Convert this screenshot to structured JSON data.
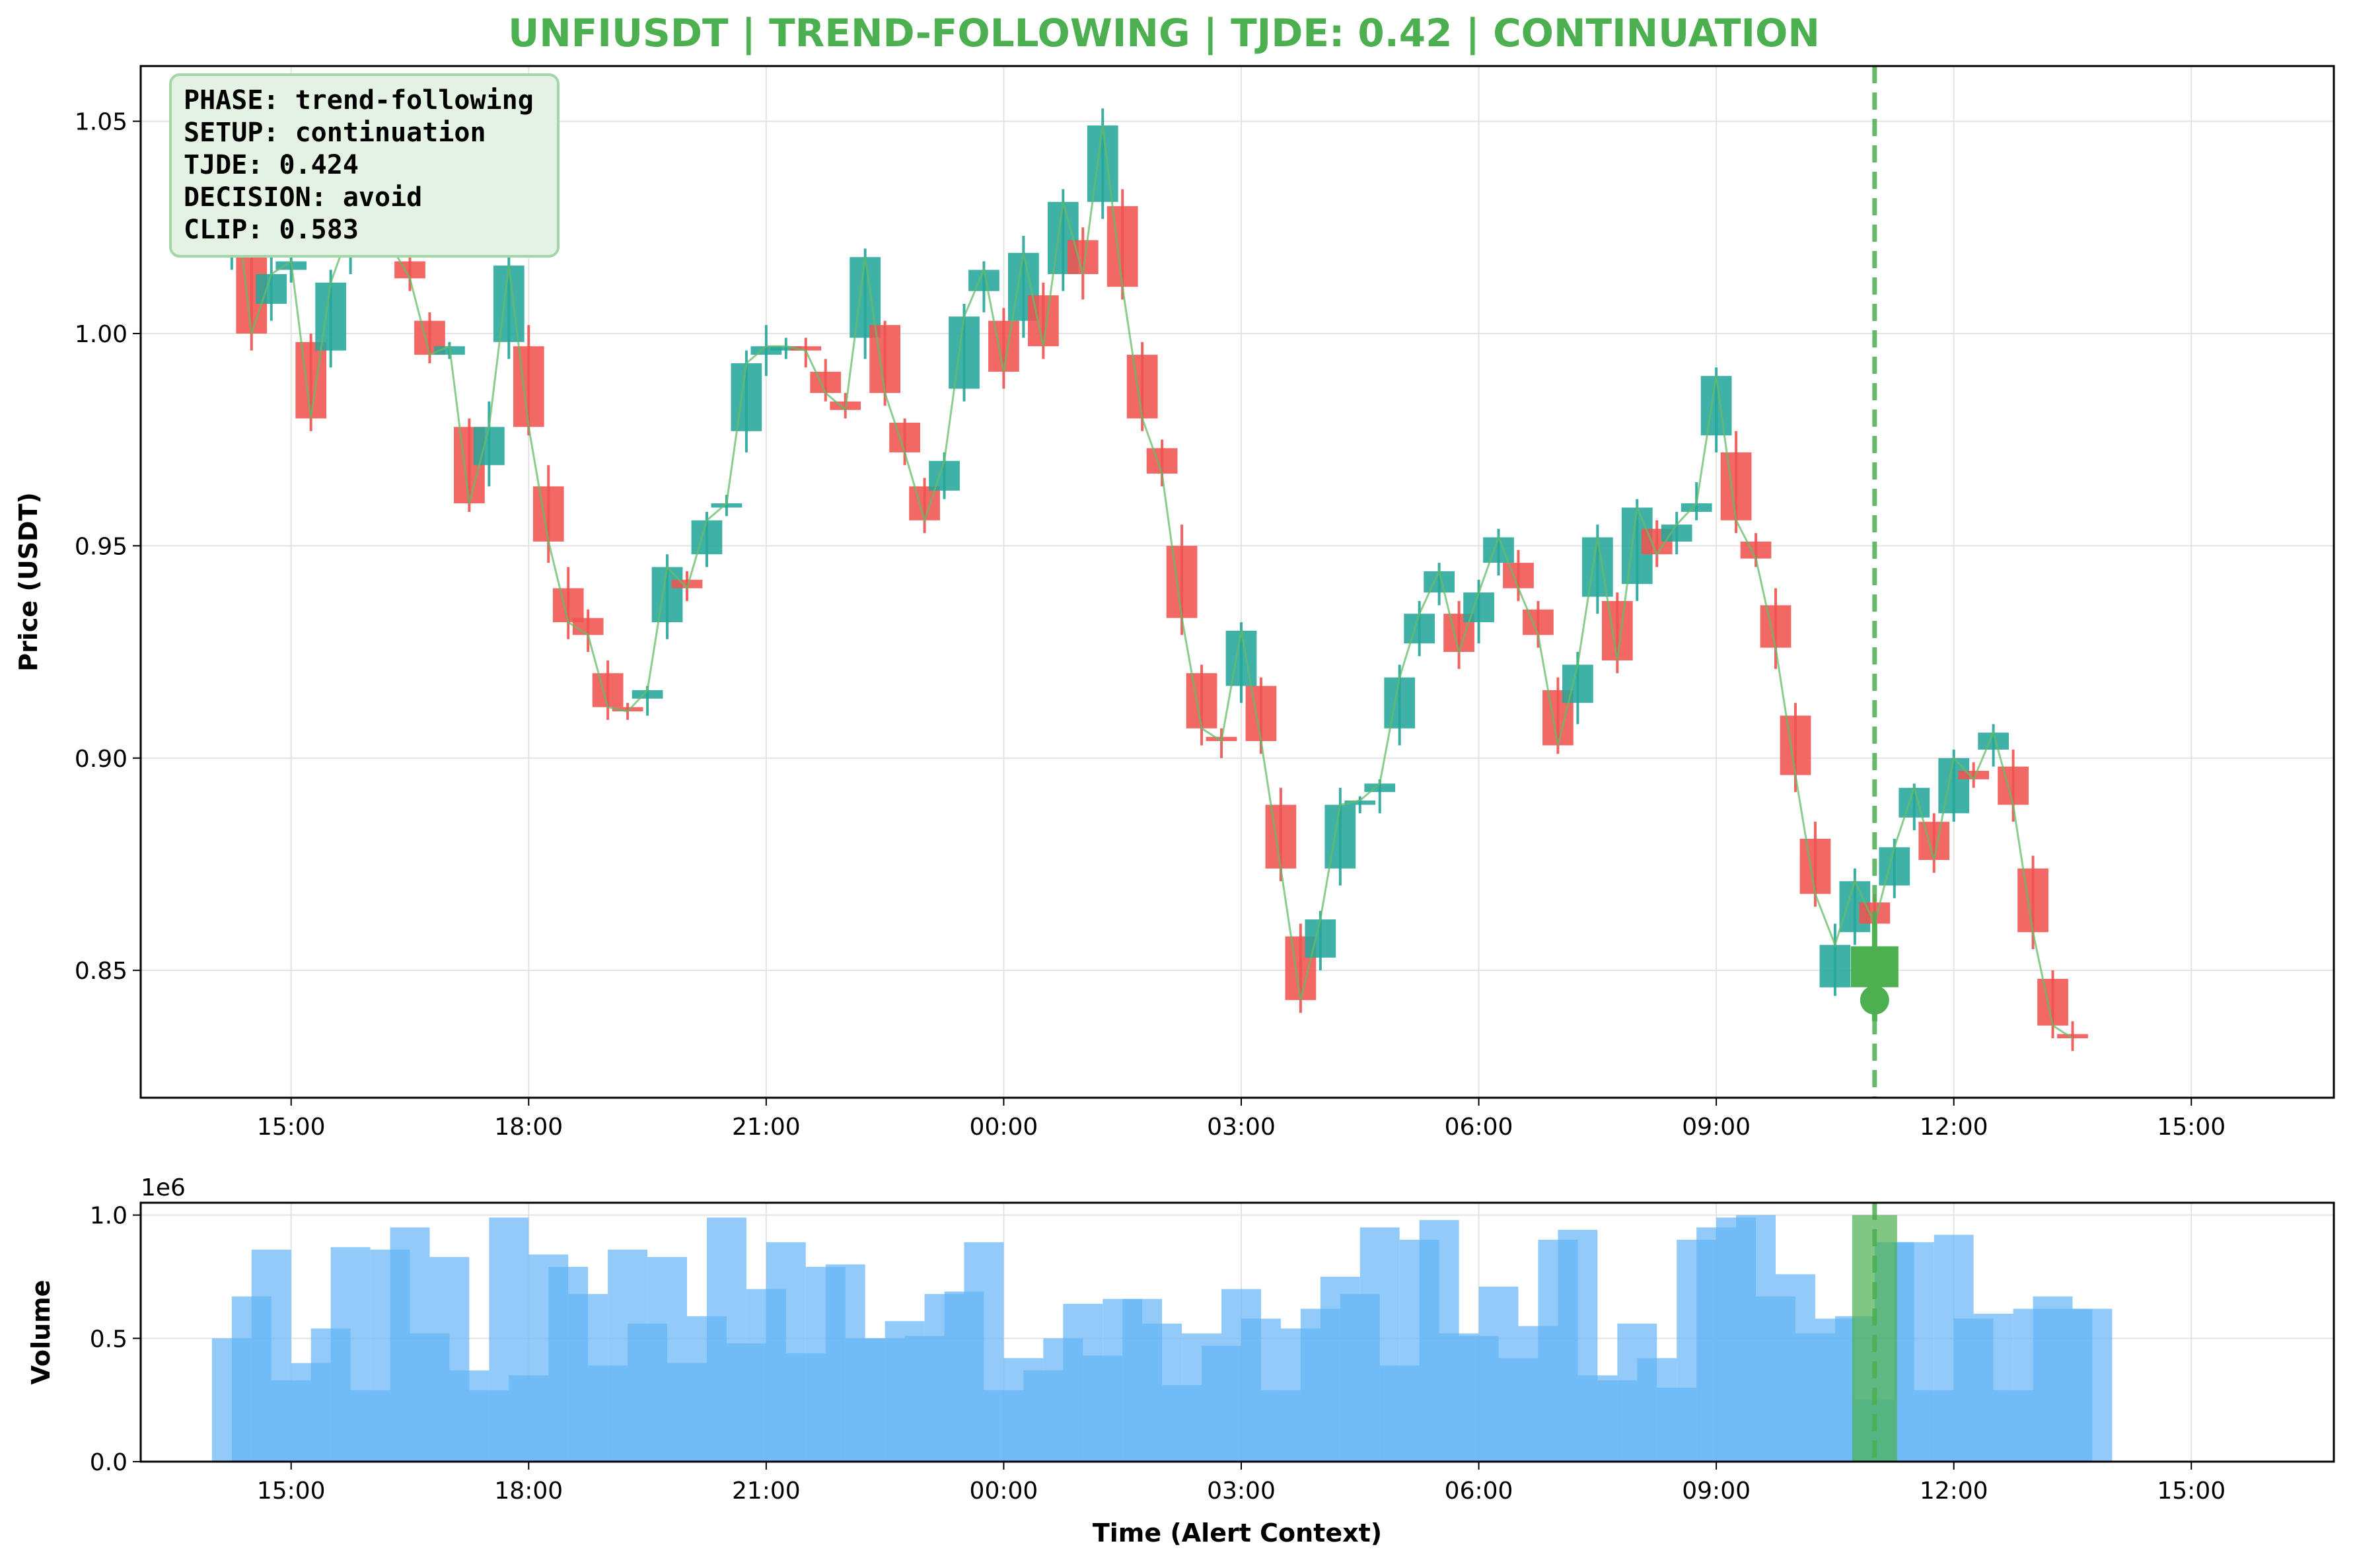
{
  "title": "UNFIUSDT | TREND-FOLLOWING | TJDE: 0.42 | CONTINUATION",
  "info_box": {
    "lines": [
      "PHASE: trend-following",
      "SETUP: continuation",
      "TJDE: 0.424",
      "DECISION: avoid",
      "CLIP: 0.583"
    ]
  },
  "colors": {
    "up": "#26a69a",
    "down": "#ef5350",
    "title": "#4caf50",
    "alert": "#4caf50",
    "close_line": "#66bb6a",
    "volume": "#64b5f6",
    "info_box_bg": "#e3f2e3",
    "info_box_border": "#a5d6a7"
  },
  "chart_data": [
    {
      "type": "candlestick",
      "title": "UNFIUSDT | TREND-FOLLOWING | TJDE: 0.42 | CONTINUATION",
      "ylabel": "Price (USDT)",
      "ylim": [
        0.82,
        1.063
      ],
      "x_range_hours": [
        -0.9,
        26.8
      ],
      "x_ticks": [
        {
          "hour": 1,
          "label": "15:00"
        },
        {
          "hour": 4,
          "label": "18:00"
        },
        {
          "hour": 7,
          "label": "21:00"
        },
        {
          "hour": 10,
          "label": "00:00"
        },
        {
          "hour": 13,
          "label": "03:00"
        },
        {
          "hour": 16,
          "label": "06:00"
        },
        {
          "hour": 19,
          "label": "09:00"
        },
        {
          "hour": 22,
          "label": "12:00"
        },
        {
          "hour": 25,
          "label": "15:00"
        }
      ],
      "y_ticks": [
        0.85,
        0.9,
        0.95,
        1.0,
        1.05
      ],
      "y_tick_labels": [
        "0.85",
        "0.90",
        "0.95",
        "1.00",
        "1.05"
      ],
      "grid": true,
      "candle_interval_minutes": 15,
      "ohlc_hours_from_14_00": [
        {
          "t": 0.25,
          "o": 1.02,
          "h": 1.044,
          "l": 1.015,
          "c": 1.039
        },
        {
          "t": 0.5,
          "o": 1.02,
          "h": 1.04,
          "l": 0.996,
          "c": 1.0
        },
        {
          "t": 0.75,
          "o": 1.007,
          "h": 1.019,
          "l": 1.003,
          "c": 1.014
        },
        {
          "t": 1.0,
          "o": 1.015,
          "h": 1.02,
          "l": 1.012,
          "c": 1.017
        },
        {
          "t": 1.25,
          "o": 0.998,
          "h": 1.0,
          "l": 0.977,
          "c": 0.98
        },
        {
          "t": 1.5,
          "o": 0.996,
          "h": 1.015,
          "l": 0.992,
          "c": 1.012
        },
        {
          "t": 1.75,
          "o": 1.019,
          "h": 1.028,
          "l": 1.014,
          "c": 1.025
        },
        {
          "t": 2.0,
          "o": 1.023,
          "h": 1.027,
          "l": 1.018,
          "c": 1.02
        },
        {
          "t": 2.25,
          "o": 1.022,
          "h": 1.025,
          "l": 1.018,
          "c": 1.021
        },
        {
          "t": 2.5,
          "o": 1.017,
          "h": 1.018,
          "l": 1.01,
          "c": 1.013
        },
        {
          "t": 2.75,
          "o": 1.003,
          "h": 1.005,
          "l": 0.993,
          "c": 0.995
        },
        {
          "t": 3.0,
          "o": 0.995,
          "h": 0.998,
          "l": 0.994,
          "c": 0.997
        },
        {
          "t": 3.25,
          "o": 0.978,
          "h": 0.98,
          "l": 0.958,
          "c": 0.96
        },
        {
          "t": 3.5,
          "o": 0.969,
          "h": 0.984,
          "l": 0.964,
          "c": 0.978
        },
        {
          "t": 3.75,
          "o": 0.998,
          "h": 1.021,
          "l": 0.994,
          "c": 1.016
        },
        {
          "t": 4.0,
          "o": 0.997,
          "h": 1.002,
          "l": 0.976,
          "c": 0.978
        },
        {
          "t": 4.25,
          "o": 0.964,
          "h": 0.969,
          "l": 0.946,
          "c": 0.951
        },
        {
          "t": 4.5,
          "o": 0.94,
          "h": 0.945,
          "l": 0.928,
          "c": 0.932
        },
        {
          "t": 4.75,
          "o": 0.933,
          "h": 0.935,
          "l": 0.925,
          "c": 0.929
        },
        {
          "t": 5.0,
          "o": 0.92,
          "h": 0.923,
          "l": 0.909,
          "c": 0.912
        },
        {
          "t": 5.25,
          "o": 0.912,
          "h": 0.913,
          "l": 0.909,
          "c": 0.911
        },
        {
          "t": 5.5,
          "o": 0.914,
          "h": 0.917,
          "l": 0.91,
          "c": 0.916
        },
        {
          "t": 5.75,
          "o": 0.932,
          "h": 0.948,
          "l": 0.928,
          "c": 0.945
        },
        {
          "t": 6.0,
          "o": 0.942,
          "h": 0.944,
          "l": 0.937,
          "c": 0.94
        },
        {
          "t": 6.25,
          "o": 0.948,
          "h": 0.958,
          "l": 0.945,
          "c": 0.956
        },
        {
          "t": 6.5,
          "o": 0.959,
          "h": 0.962,
          "l": 0.957,
          "c": 0.96
        },
        {
          "t": 6.75,
          "o": 0.977,
          "h": 0.996,
          "l": 0.972,
          "c": 0.993
        },
        {
          "t": 7.0,
          "o": 0.995,
          "h": 1.002,
          "l": 0.99,
          "c": 0.997
        },
        {
          "t": 7.25,
          "o": 0.996,
          "h": 0.999,
          "l": 0.994,
          "c": 0.997
        },
        {
          "t": 7.5,
          "o": 0.997,
          "h": 0.999,
          "l": 0.992,
          "c": 0.996
        },
        {
          "t": 7.75,
          "o": 0.991,
          "h": 0.994,
          "l": 0.984,
          "c": 0.986
        },
        {
          "t": 8.0,
          "o": 0.984,
          "h": 0.986,
          "l": 0.98,
          "c": 0.982
        },
        {
          "t": 8.25,
          "o": 0.999,
          "h": 1.02,
          "l": 0.994,
          "c": 1.018
        },
        {
          "t": 8.5,
          "o": 1.002,
          "h": 1.003,
          "l": 0.983,
          "c": 0.986
        },
        {
          "t": 8.75,
          "o": 0.979,
          "h": 0.98,
          "l": 0.969,
          "c": 0.972
        },
        {
          "t": 9.0,
          "o": 0.964,
          "h": 0.966,
          "l": 0.953,
          "c": 0.956
        },
        {
          "t": 9.25,
          "o": 0.963,
          "h": 0.972,
          "l": 0.961,
          "c": 0.97
        },
        {
          "t": 9.5,
          "o": 0.987,
          "h": 1.007,
          "l": 0.984,
          "c": 1.004
        },
        {
          "t": 9.75,
          "o": 1.01,
          "h": 1.017,
          "l": 1.005,
          "c": 1.015
        },
        {
          "t": 10.0,
          "o": 1.003,
          "h": 1.006,
          "l": 0.987,
          "c": 0.991
        },
        {
          "t": 10.25,
          "o": 1.003,
          "h": 1.023,
          "l": 0.999,
          "c": 1.019
        },
        {
          "t": 10.5,
          "o": 1.009,
          "h": 1.012,
          "l": 0.994,
          "c": 0.997
        },
        {
          "t": 10.75,
          "o": 1.014,
          "h": 1.034,
          "l": 1.01,
          "c": 1.031
        },
        {
          "t": 11.0,
          "o": 1.022,
          "h": 1.025,
          "l": 1.008,
          "c": 1.014
        },
        {
          "t": 11.25,
          "o": 1.031,
          "h": 1.053,
          "l": 1.027,
          "c": 1.049
        },
        {
          "t": 11.5,
          "o": 1.03,
          "h": 1.034,
          "l": 1.008,
          "c": 1.011
        },
        {
          "t": 11.75,
          "o": 0.995,
          "h": 0.998,
          "l": 0.977,
          "c": 0.98
        },
        {
          "t": 12.0,
          "o": 0.973,
          "h": 0.975,
          "l": 0.964,
          "c": 0.967
        },
        {
          "t": 12.25,
          "o": 0.95,
          "h": 0.955,
          "l": 0.929,
          "c": 0.933
        },
        {
          "t": 12.5,
          "o": 0.92,
          "h": 0.922,
          "l": 0.903,
          "c": 0.907
        },
        {
          "t": 12.75,
          "o": 0.905,
          "h": 0.907,
          "l": 0.9,
          "c": 0.904
        },
        {
          "t": 13.0,
          "o": 0.917,
          "h": 0.932,
          "l": 0.913,
          "c": 0.93
        },
        {
          "t": 13.25,
          "o": 0.917,
          "h": 0.919,
          "l": 0.901,
          "c": 0.904
        },
        {
          "t": 13.5,
          "o": 0.889,
          "h": 0.893,
          "l": 0.871,
          "c": 0.874
        },
        {
          "t": 13.75,
          "o": 0.858,
          "h": 0.861,
          "l": 0.84,
          "c": 0.843
        },
        {
          "t": 14.0,
          "o": 0.853,
          "h": 0.864,
          "l": 0.85,
          "c": 0.862
        },
        {
          "t": 14.25,
          "o": 0.874,
          "h": 0.893,
          "l": 0.87,
          "c": 0.889
        },
        {
          "t": 14.5,
          "o": 0.889,
          "h": 0.891,
          "l": 0.887,
          "c": 0.89
        },
        {
          "t": 14.75,
          "o": 0.892,
          "h": 0.895,
          "l": 0.887,
          "c": 0.894
        },
        {
          "t": 15.0,
          "o": 0.907,
          "h": 0.922,
          "l": 0.903,
          "c": 0.919
        },
        {
          "t": 15.25,
          "o": 0.927,
          "h": 0.937,
          "l": 0.924,
          "c": 0.934
        },
        {
          "t": 15.5,
          "o": 0.939,
          "h": 0.946,
          "l": 0.936,
          "c": 0.944
        },
        {
          "t": 15.75,
          "o": 0.934,
          "h": 0.937,
          "l": 0.921,
          "c": 0.925
        },
        {
          "t": 16.0,
          "o": 0.932,
          "h": 0.942,
          "l": 0.927,
          "c": 0.939
        },
        {
          "t": 16.25,
          "o": 0.946,
          "h": 0.954,
          "l": 0.943,
          "c": 0.952
        },
        {
          "t": 16.5,
          "o": 0.946,
          "h": 0.949,
          "l": 0.937,
          "c": 0.94
        },
        {
          "t": 16.75,
          "o": 0.935,
          "h": 0.937,
          "l": 0.926,
          "c": 0.929
        },
        {
          "t": 17.0,
          "o": 0.916,
          "h": 0.919,
          "l": 0.901,
          "c": 0.903
        },
        {
          "t": 17.25,
          "o": 0.913,
          "h": 0.925,
          "l": 0.908,
          "c": 0.922
        },
        {
          "t": 17.5,
          "o": 0.938,
          "h": 0.955,
          "l": 0.934,
          "c": 0.952
        },
        {
          "t": 17.75,
          "o": 0.937,
          "h": 0.939,
          "l": 0.92,
          "c": 0.923
        },
        {
          "t": 18.0,
          "o": 0.941,
          "h": 0.961,
          "l": 0.937,
          "c": 0.959
        },
        {
          "t": 18.25,
          "o": 0.954,
          "h": 0.956,
          "l": 0.945,
          "c": 0.948
        },
        {
          "t": 18.5,
          "o": 0.951,
          "h": 0.958,
          "l": 0.948,
          "c": 0.955
        },
        {
          "t": 18.75,
          "o": 0.958,
          "h": 0.965,
          "l": 0.956,
          "c": 0.96
        },
        {
          "t": 19.0,
          "o": 0.976,
          "h": 0.992,
          "l": 0.972,
          "c": 0.99
        },
        {
          "t": 19.25,
          "o": 0.972,
          "h": 0.977,
          "l": 0.953,
          "c": 0.956
        },
        {
          "t": 19.5,
          "o": 0.951,
          "h": 0.953,
          "l": 0.945,
          "c": 0.947
        },
        {
          "t": 19.75,
          "o": 0.936,
          "h": 0.94,
          "l": 0.921,
          "c": 0.926
        },
        {
          "t": 20.0,
          "o": 0.91,
          "h": 0.913,
          "l": 0.892,
          "c": 0.896
        },
        {
          "t": 20.25,
          "o": 0.881,
          "h": 0.885,
          "l": 0.865,
          "c": 0.868
        },
        {
          "t": 20.5,
          "o": 0.846,
          "h": 0.861,
          "l": 0.844,
          "c": 0.856
        },
        {
          "t": 20.75,
          "o": 0.859,
          "h": 0.874,
          "l": 0.856,
          "c": 0.871
        },
        {
          "t": 21.0,
          "o": 0.866,
          "h": 0.868,
          "l": 0.859,
          "c": 0.861
        },
        {
          "t": 21.25,
          "o": 0.87,
          "h": 0.881,
          "l": 0.867,
          "c": 0.879
        },
        {
          "t": 21.5,
          "o": 0.886,
          "h": 0.894,
          "l": 0.883,
          "c": 0.893
        },
        {
          "t": 21.75,
          "o": 0.885,
          "h": 0.887,
          "l": 0.873,
          "c": 0.876
        },
        {
          "t": 22.0,
          "o": 0.887,
          "h": 0.902,
          "l": 0.885,
          "c": 0.9
        },
        {
          "t": 22.25,
          "o": 0.897,
          "h": 0.899,
          "l": 0.893,
          "c": 0.895
        },
        {
          "t": 22.5,
          "o": 0.902,
          "h": 0.908,
          "l": 0.898,
          "c": 0.906
        },
        {
          "t": 22.75,
          "o": 0.898,
          "h": 0.902,
          "l": 0.885,
          "c": 0.889
        },
        {
          "t": 23.0,
          "o": 0.874,
          "h": 0.877,
          "l": 0.855,
          "c": 0.859
        },
        {
          "t": 23.25,
          "o": 0.848,
          "h": 0.85,
          "l": 0.834,
          "c": 0.837
        },
        {
          "t": 23.5,
          "o": 0.835,
          "h": 0.838,
          "l": 0.831,
          "c": 0.834
        }
      ],
      "alert": {
        "hour": 21.0,
        "price": 0.851,
        "marker": "green candle with dashed vertical line"
      }
    },
    {
      "type": "bar",
      "ylabel": "Volume",
      "xlabel": "Time (Alert Context)",
      "scale_label": "1e6",
      "ylim": [
        0,
        1050000
      ],
      "y_ticks": [
        0,
        500000,
        1000000
      ],
      "y_tick_labels": [
        "0.0",
        "0.5",
        "1.0"
      ],
      "x_ticks_shared": true,
      "grid": true,
      "bar_width_hours": 0.5,
      "series": [
        {
          "values": [
            500000,
            670000,
            860000,
            330000,
            400000,
            540000,
            870000,
            290000,
            860000,
            950000,
            520000,
            830000,
            370000,
            290000,
            990000,
            350000,
            840000,
            790000,
            680000,
            390000,
            860000,
            560000,
            830000,
            400000,
            590000,
            990000,
            480000,
            700000,
            890000,
            440000,
            790000,
            800000,
            500000,
            500000,
            570000,
            510000,
            680000,
            690000,
            890000,
            290000,
            420000,
            370000,
            500000,
            640000,
            430000,
            660000,
            660000,
            560000,
            310000,
            520000,
            470000,
            700000,
            580000,
            290000,
            540000,
            620000,
            750000,
            680000,
            950000,
            390000,
            900000,
            980000,
            520000,
            510000,
            710000,
            420000,
            550000,
            900000,
            940000,
            350000,
            330000,
            560000,
            420000,
            300000,
            900000,
            950000,
            990000,
            1000000,
            670000,
            760000,
            520000,
            580000,
            590000,
            250000,
            890000,
            890000,
            290000,
            920000,
            580000,
            600000,
            290000,
            620000,
            670000,
            620000,
            620000
          ]
        }
      ],
      "volume_hours_from_14_00": [
        0.0,
        0.25,
        0.5,
        0.75,
        1.0,
        1.25,
        1.5,
        1.75,
        2.0,
        2.25,
        2.5,
        2.75,
        3.0,
        3.25,
        3.5,
        3.75,
        4.0,
        4.25,
        4.5,
        4.75,
        5.0,
        5.25,
        5.5,
        5.75,
        6.0,
        6.25,
        6.5,
        6.75,
        7.0,
        7.25,
        7.5,
        7.75,
        8.0,
        8.25,
        8.5,
        8.75,
        9.0,
        9.25,
        9.5,
        9.75,
        10.0,
        10.25,
        10.5,
        10.75,
        11.0,
        11.25,
        11.5,
        11.75,
        12.0,
        12.25,
        12.5,
        12.75,
        13.0,
        13.25,
        13.5,
        13.75,
        14.0,
        14.25,
        14.5,
        14.75,
        15.0,
        15.25,
        15.5,
        15.75,
        16.0,
        16.25,
        16.5,
        16.75,
        17.0,
        17.25,
        17.5,
        17.75,
        18.0,
        18.25,
        18.5,
        18.75,
        19.0,
        19.25,
        19.5,
        19.75,
        20.0,
        20.25,
        20.5,
        20.75,
        21.0,
        21.25,
        21.5,
        21.75,
        22.0,
        22.25,
        22.5,
        22.75,
        23.0,
        23.25,
        23.5
      ],
      "alert": {
        "hour": 21.0,
        "value": 1000000
      }
    }
  ]
}
